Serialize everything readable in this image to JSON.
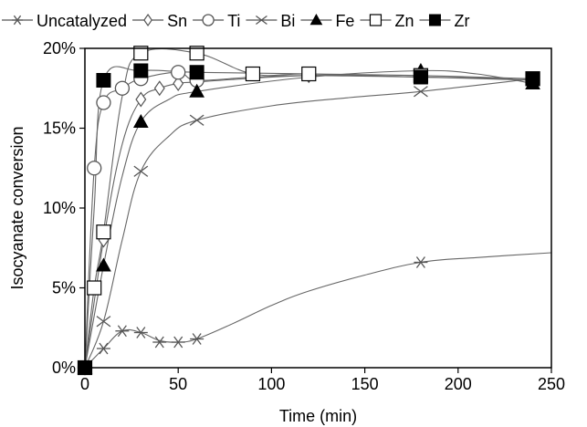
{
  "chart_data": {
    "type": "line",
    "xlabel": "Time (min)",
    "ylabel": "Isocyanate conversion",
    "xlim": [
      0,
      250
    ],
    "ylim": [
      0,
      0.2
    ],
    "x_ticks": [
      0,
      50,
      100,
      150,
      200,
      250
    ],
    "x_tick_labels": [
      "0",
      "50",
      "100",
      "150",
      "200",
      "250"
    ],
    "y_ticks": [
      0,
      0.05,
      0.1,
      0.15,
      0.2
    ],
    "y_tick_labels": [
      "0%",
      "5%",
      "10%",
      "15%",
      "20%"
    ],
    "grid": false,
    "legend_position": "top",
    "series": [
      {
        "name": "Uncatalyzed",
        "marker": "asterisk",
        "color": "#595959",
        "points": [
          [
            0,
            0
          ],
          [
            10,
            0.012
          ],
          [
            20,
            0.023
          ],
          [
            30,
            0.022
          ],
          [
            40,
            0.016
          ],
          [
            50,
            0.016
          ],
          [
            60,
            0.018
          ],
          [
            180,
            0.066
          ]
        ],
        "curve": [
          [
            0,
            0
          ],
          [
            10,
            0.012
          ],
          [
            20,
            0.023
          ],
          [
            30,
            0.022
          ],
          [
            40,
            0.017
          ],
          [
            50,
            0.016
          ],
          [
            60,
            0.018
          ],
          [
            80,
            0.028
          ],
          [
            100,
            0.039
          ],
          [
            120,
            0.048
          ],
          [
            150,
            0.058
          ],
          [
            180,
            0.066
          ],
          [
            210,
            0.069
          ],
          [
            250,
            0.072
          ]
        ]
      },
      {
        "name": "Sn",
        "marker": "diamond-open",
        "color": "#595959",
        "points": [
          [
            0,
            0
          ],
          [
            10,
            0.08
          ],
          [
            30,
            0.168
          ],
          [
            40,
            0.175
          ],
          [
            50,
            0.178
          ],
          [
            60,
            0.179
          ],
          [
            120,
            0.183
          ],
          [
            240,
            0.18
          ]
        ],
        "curve": [
          [
            0,
            0
          ],
          [
            10,
            0.08
          ],
          [
            20,
            0.14
          ],
          [
            30,
            0.168
          ],
          [
            40,
            0.175
          ],
          [
            50,
            0.178
          ],
          [
            60,
            0.179
          ],
          [
            120,
            0.183
          ],
          [
            180,
            0.182
          ],
          [
            240,
            0.18
          ]
        ]
      },
      {
        "name": "Ti",
        "marker": "circle-open",
        "color": "#595959",
        "points": [
          [
            0,
            0
          ],
          [
            5,
            0.125
          ],
          [
            10,
            0.166
          ],
          [
            20,
            0.175
          ],
          [
            30,
            0.181
          ],
          [
            50,
            0.185
          ],
          [
            60,
            0.18
          ]
        ],
        "curve": [
          [
            0,
            0
          ],
          [
            5,
            0.125
          ],
          [
            10,
            0.166
          ],
          [
            20,
            0.175
          ],
          [
            30,
            0.181
          ],
          [
            50,
            0.185
          ],
          [
            60,
            0.18
          ],
          [
            90,
            0.182
          ],
          [
            120,
            0.183
          ],
          [
            180,
            0.182
          ],
          [
            240,
            0.181
          ]
        ]
      },
      {
        "name": "Bi",
        "marker": "x",
        "color": "#595959",
        "points": [
          [
            0,
            0
          ],
          [
            10,
            0.029
          ],
          [
            30,
            0.123
          ],
          [
            60,
            0.155
          ],
          [
            180,
            0.173
          ],
          [
            240,
            0.181
          ]
        ],
        "curve": [
          [
            0,
            0
          ],
          [
            10,
            0.029
          ],
          [
            20,
            0.08
          ],
          [
            30,
            0.123
          ],
          [
            45,
            0.145
          ],
          [
            60,
            0.155
          ],
          [
            100,
            0.164
          ],
          [
            140,
            0.169
          ],
          [
            180,
            0.173
          ],
          [
            240,
            0.181
          ]
        ]
      },
      {
        "name": "Fe",
        "marker": "triangle-filled",
        "color": "#000000",
        "points": [
          [
            0,
            0
          ],
          [
            10,
            0.064
          ],
          [
            30,
            0.154
          ],
          [
            60,
            0.173
          ],
          [
            180,
            0.186
          ],
          [
            240,
            0.178
          ]
        ],
        "curve": [
          [
            0,
            0
          ],
          [
            10,
            0.064
          ],
          [
            20,
            0.12
          ],
          [
            30,
            0.154
          ],
          [
            45,
            0.168
          ],
          [
            60,
            0.173
          ],
          [
            120,
            0.182
          ],
          [
            180,
            0.186
          ],
          [
            210,
            0.184
          ],
          [
            240,
            0.178
          ]
        ]
      },
      {
        "name": "Zn",
        "marker": "square-open",
        "color": "#595959",
        "points": [
          [
            0,
            0
          ],
          [
            5,
            0.05
          ],
          [
            10,
            0.085
          ],
          [
            30,
            0.197
          ],
          [
            60,
            0.197
          ],
          [
            90,
            0.184
          ],
          [
            120,
            0.184
          ],
          [
            180,
            0.183
          ],
          [
            240,
            0.181
          ]
        ],
        "curve": [
          [
            0,
            0
          ],
          [
            5,
            0.05
          ],
          [
            10,
            0.085
          ],
          [
            20,
            0.17
          ],
          [
            30,
            0.197
          ],
          [
            60,
            0.197
          ],
          [
            90,
            0.184
          ],
          [
            120,
            0.184
          ],
          [
            180,
            0.183
          ],
          [
            240,
            0.181
          ]
        ]
      },
      {
        "name": "Zr",
        "marker": "square-filled",
        "color": "#000000",
        "points": [
          [
            0,
            0
          ],
          [
            10,
            0.18
          ],
          [
            30,
            0.186
          ],
          [
            60,
            0.185
          ],
          [
            180,
            0.182
          ],
          [
            240,
            0.181
          ]
        ],
        "curve": [
          [
            0,
            0
          ],
          [
            5,
            0.1
          ],
          [
            10,
            0.18
          ],
          [
            30,
            0.186
          ],
          [
            60,
            0.185
          ],
          [
            120,
            0.184
          ],
          [
            180,
            0.182
          ],
          [
            240,
            0.181
          ]
        ]
      }
    ]
  }
}
